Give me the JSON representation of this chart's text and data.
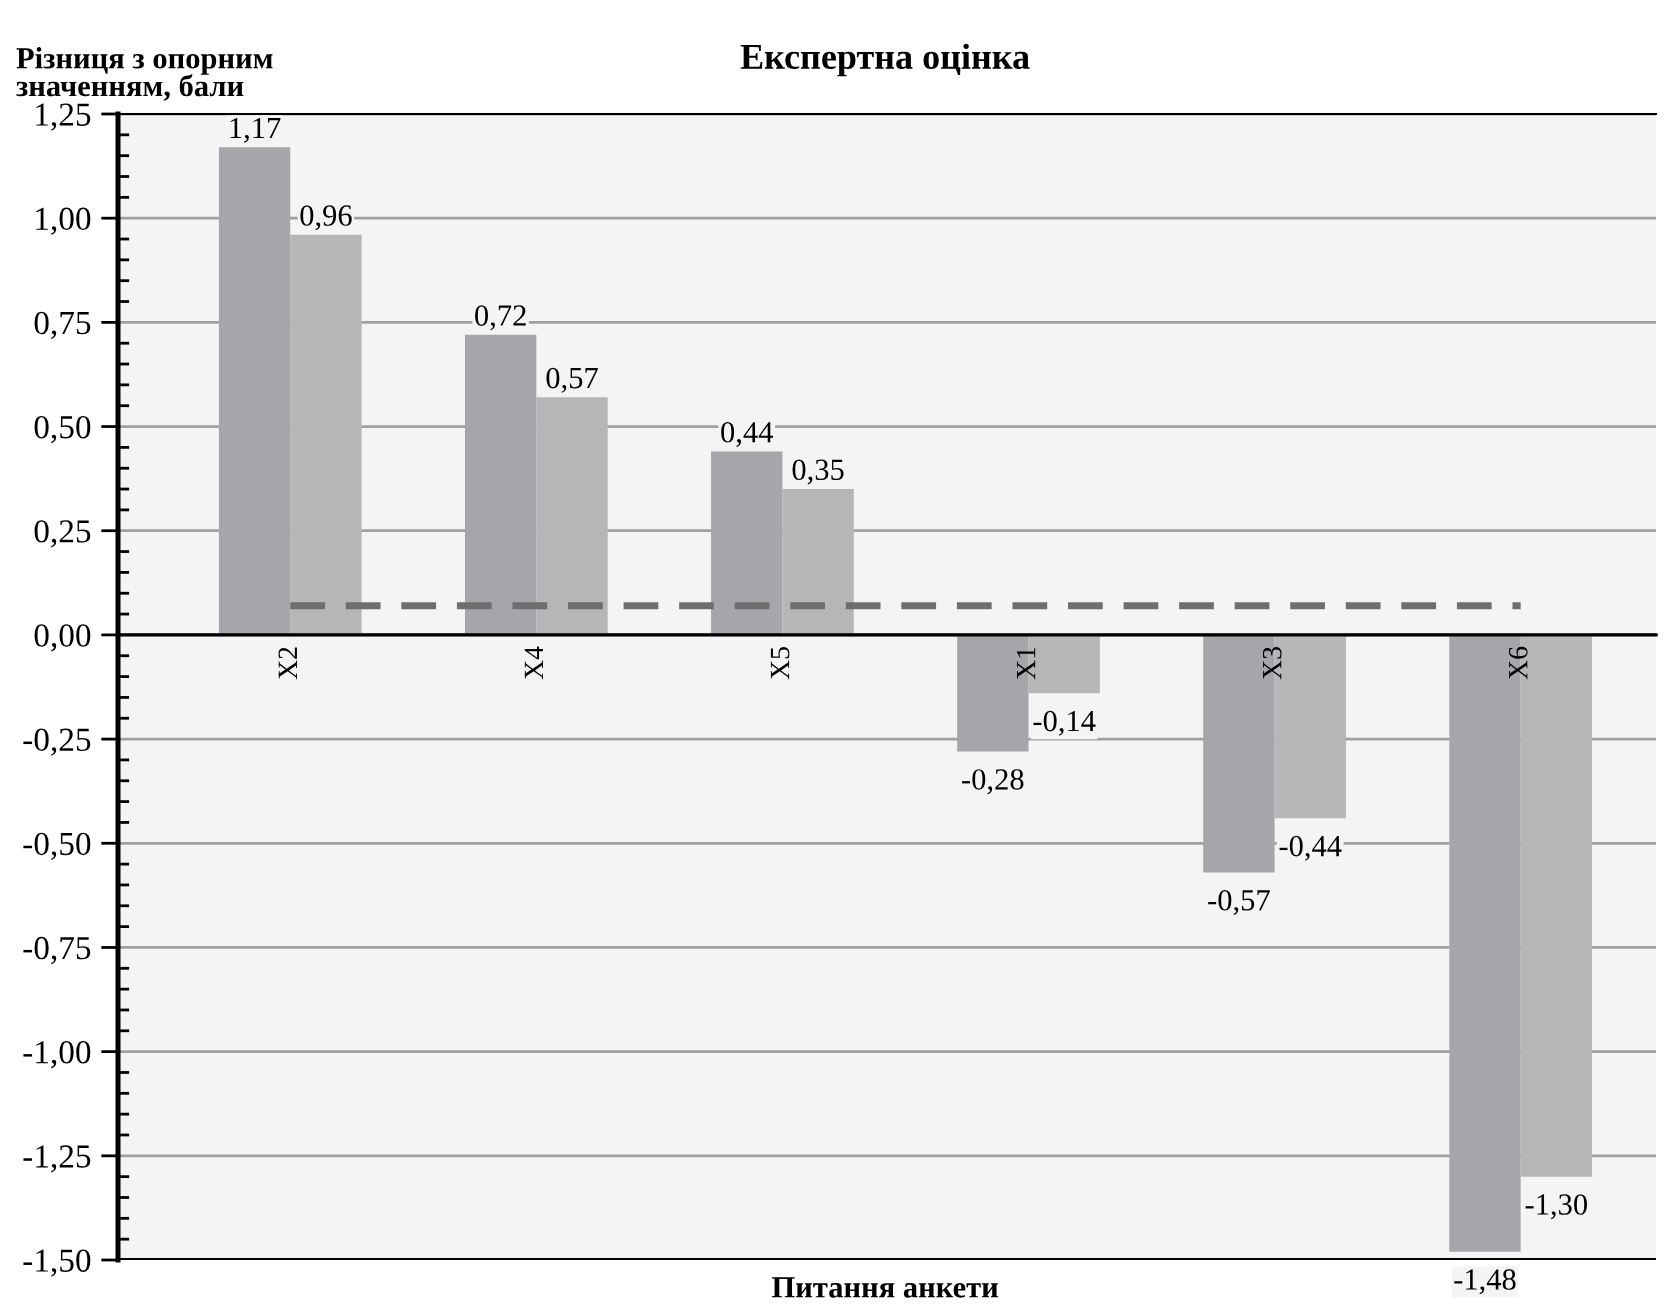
{
  "chart_data": {
    "type": "bar",
    "title": "Експертна оцінка",
    "xlabel": "Питання анкети",
    "ylabel": "Різниця з опорним\nзначенням, бали",
    "categories": [
      "X2",
      "X4",
      "X5",
      "X1",
      "X3",
      "X6"
    ],
    "series": [
      {
        "color": "#a5a6aa",
        "values": [
          1.17,
          0.72,
          0.44,
          -0.28,
          -0.57,
          -1.48
        ],
        "value_labels": [
          "1,17",
          "0,72",
          "0,44",
          "-0,28",
          "-0,57",
          "-1,48"
        ]
      },
      {
        "color": "#b5b6b8",
        "values": [
          0.96,
          0.57,
          0.35,
          -0.14,
          -0.44,
          -1.3
        ],
        "value_labels": [
          "0,96",
          "0,57",
          "0,35",
          "-0,14",
          "-0,44",
          "-1,30"
        ]
      }
    ],
    "ylim": [
      -1.5,
      1.25
    ],
    "yticks": [
      {
        "value": -1.5,
        "label": "-1,50"
      },
      {
        "value": -1.25,
        "label": "-1,25"
      },
      {
        "value": -1.0,
        "label": "-1,00"
      },
      {
        "value": -0.75,
        "label": "-0,75"
      },
      {
        "value": -0.5,
        "label": "-0,50"
      },
      {
        "value": -0.25,
        "label": "-0,25"
      },
      {
        "value": 0,
        "label": "0,00"
      },
      {
        "value": 0.25,
        "label": "0,25"
      },
      {
        "value": 0.5,
        "label": "0,50"
      },
      {
        "value": 0.75,
        "label": "0,75"
      },
      {
        "value": 1.0,
        "label": "1,00"
      },
      {
        "value": 1.25,
        "label": "1,25"
      }
    ],
    "ref_lines": [
      {
        "axis": "y",
        "value": 0.07,
        "color": "#6e6e6e",
        "line_style": "dashed"
      }
    ],
    "grid": "y",
    "legend": false
  }
}
